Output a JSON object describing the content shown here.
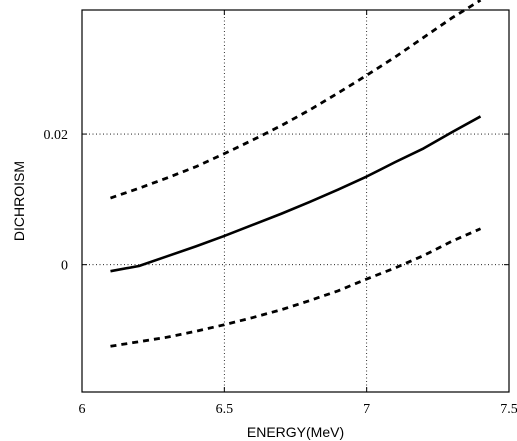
{
  "chart_data": {
    "type": "line",
    "title": "",
    "xlabel": "ENERGY(MeV)",
    "ylabel": "DICHROISM",
    "xlim": [
      6,
      7.5
    ],
    "ylim": [
      -0.0195,
      0.039
    ],
    "xticks": [
      6,
      6.5,
      7,
      7.5
    ],
    "xtick_labels": [
      "6",
      "6.5",
      "7",
      "7.5"
    ],
    "yticks": [
      0,
      0.02
    ],
    "ytick_labels": [
      "0",
      "0.02"
    ],
    "grid": true,
    "legend": "none",
    "colors": {
      "axes": "#000000",
      "grid": "#000000",
      "lines": "#000000",
      "background": "#ffffff"
    },
    "series": [
      {
        "style": "solid",
        "x": [
          6.1,
          6.2,
          6.3,
          6.4,
          6.5,
          6.6,
          6.7,
          6.8,
          6.9,
          7.0,
          7.1,
          7.2,
          7.3,
          7.4
        ],
        "y": [
          -0.001,
          -0.0002,
          0.0013,
          0.0028,
          0.0044,
          0.0061,
          0.0078,
          0.0096,
          0.0115,
          0.0135,
          0.0157,
          0.0178,
          0.0203,
          0.0227
        ]
      },
      {
        "style": "dashed",
        "x": [
          6.1,
          6.2,
          6.3,
          6.4,
          6.5,
          6.6,
          6.7,
          6.8,
          6.9,
          7.0,
          7.1,
          7.2,
          7.3,
          7.4
        ],
        "y": [
          0.0102,
          0.0117,
          0.0133,
          0.015,
          0.017,
          0.0191,
          0.0213,
          0.0237,
          0.0263,
          0.029,
          0.0318,
          0.0348,
          0.0378,
          0.0405
        ]
      },
      {
        "style": "dashed",
        "x": [
          6.1,
          6.2,
          6.3,
          6.4,
          6.5,
          6.6,
          6.7,
          6.8,
          6.9,
          7.0,
          7.1,
          7.2,
          7.3,
          7.4
        ],
        "y": [
          -0.0125,
          -0.0118,
          -0.0111,
          -0.0102,
          -0.0092,
          -0.0081,
          -0.0069,
          -0.0055,
          -0.004,
          -0.0022,
          -0.0005,
          0.0014,
          0.0036,
          0.0055
        ]
      }
    ]
  }
}
